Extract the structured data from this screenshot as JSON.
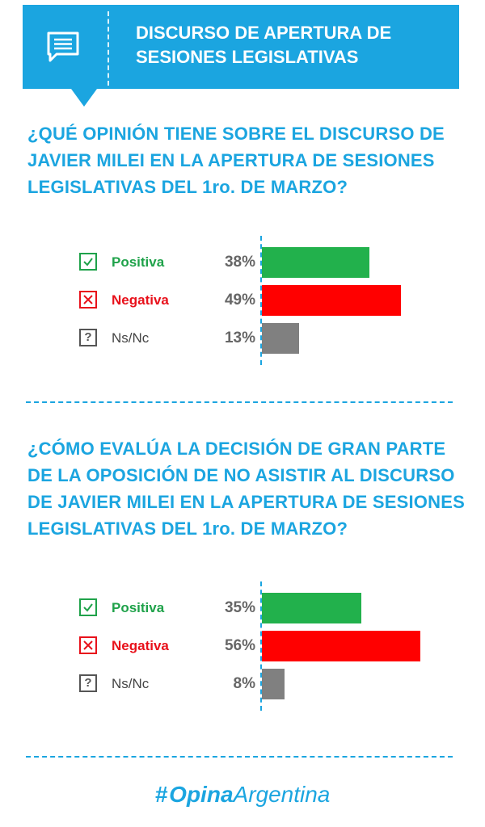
{
  "header": {
    "title_line1": "DISCURSO DE APERTURA DE",
    "title_line2": "SESIONES LEGISLATIVAS",
    "icon": "chat-note-icon"
  },
  "colors": {
    "accent": "#1ba5e0",
    "positive": "#22b14c",
    "negative": "#ff0000",
    "neutral": "#808080"
  },
  "chart_data": [
    {
      "type": "bar",
      "orientation": "horizontal",
      "title": "¿QUÉ OPINIÓN TIENE SOBRE EL DISCURSO DE JAVIER MILEI EN LA APERTURA DE SESIONES LEGISLATIVAS DEL 1ro. DE MARZO?",
      "categories": [
        "Positiva",
        "Negativa",
        "Ns/Nc"
      ],
      "values": [
        38,
        49,
        13
      ],
      "value_labels": [
        "38%",
        "49%",
        "13%"
      ],
      "unit": "%",
      "icons": [
        "check-box-icon",
        "x-box-icon",
        "question-box-icon"
      ]
    },
    {
      "type": "bar",
      "orientation": "horizontal",
      "title": "¿CÓMO EVALÚA LA DECISIÓN DE GRAN PARTE DE LA OPOSICIÓN DE NO ASISTIR AL DISCURSO DE JAVIER MILEI EN LA APERTURA DE SESIONES LEGISLATIVAS DEL 1ro. DE MARZO?",
      "categories": [
        "Positiva",
        "Negativa",
        "Ns/Nc"
      ],
      "values": [
        35,
        56,
        8
      ],
      "value_labels": [
        "35%",
        "56%",
        "8%"
      ],
      "unit": "%",
      "icons": [
        "check-box-icon",
        "x-box-icon",
        "question-box-icon"
      ]
    }
  ],
  "footer": {
    "logo_hash": "#",
    "logo_bold": "Opina",
    "logo_light": "Argentina"
  }
}
